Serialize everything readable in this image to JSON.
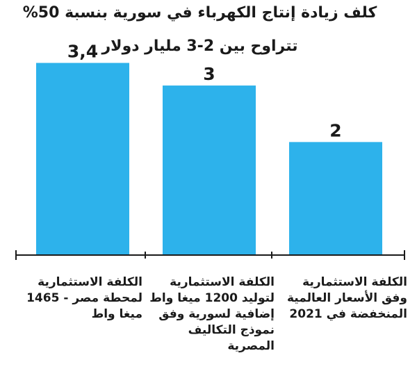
{
  "title": {
    "line1": "كلف زيادة إنتاج الكهرباء في سورية بنسبة 50%",
    "line2": "تتراوح بين 2-3 مليار دولار"
  },
  "colors": {
    "bar": "#2db2eb",
    "axis": "#1a1a1a",
    "text": "#1a1a1a"
  },
  "chart_data": {
    "type": "bar",
    "title": "كلف زيادة إنتاج الكهرباء في سورية بنسبة 50% تتراوح بين 2-3 مليار دولار",
    "categories": [
      "الكلفة الاستثمارية لمحطة مصر - 1465 ميغا واط",
      "الكلفة الاستثمارية لتوليد 1200 ميغا واط إضافية لسورية وفق نموذج التكاليف المصرية",
      "الكلفة الاستثمارية وفق الأسعار العالمية المنخفضة في 2021"
    ],
    "values": [
      3.4,
      3,
      2
    ],
    "value_labels": [
      "3,4",
      "3",
      "2"
    ],
    "ylim": [
      0,
      3.8
    ],
    "grid": false,
    "legend": "none"
  }
}
